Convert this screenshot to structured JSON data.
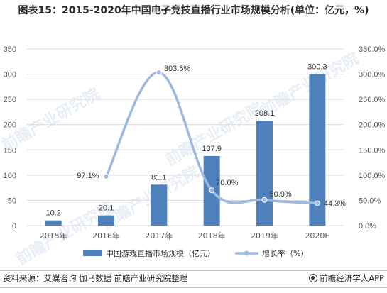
{
  "title": "图表15：2015-2020年中国电子竞技直播行业市场规模分析(单位：亿元，%)",
  "footer": {
    "source": "资料来源：艾媒咨询 伽马数据 前瞻产业研究院整理",
    "brand": "前瞻经济学人APP"
  },
  "watermark": "前瞻产业研究院",
  "colors": {
    "bar": "#4f81bd",
    "line": "#9db9e2",
    "grid": "#d9d9d9",
    "axis_text": "#595959"
  },
  "chart_data": {
    "type": "bar+line",
    "categories": [
      "2015年",
      "2016年",
      "2017年",
      "2018年",
      "2019年",
      "2020E"
    ],
    "series": [
      {
        "name": "中国游戏直播市场规模（亿元）",
        "type": "bar",
        "axis": "left",
        "values": [
          10.2,
          20.1,
          81.1,
          137.9,
          208.1,
          300.3
        ],
        "labels": [
          "10.2",
          "20.1",
          "81.1",
          "137.9",
          "208.1",
          "300.3"
        ]
      },
      {
        "name": "增长率（%）",
        "type": "line",
        "axis": "right",
        "values": [
          null,
          97.1,
          303.5,
          70.0,
          50.9,
          44.3
        ],
        "labels": [
          "",
          "97.1%",
          "303.5%",
          "70.0%",
          "50.9%",
          "44.3%"
        ]
      }
    ],
    "y_left": {
      "min": 0,
      "max": 350,
      "ticks": [
        0,
        50,
        100,
        150,
        200,
        250,
        300,
        350
      ]
    },
    "y_right": {
      "min": 0,
      "max": 350,
      "ticks": [
        "0.0%",
        "50.0%",
        "100.0%",
        "150.0%",
        "200.0%",
        "250.0%",
        "300.0%",
        "350.0%"
      ]
    },
    "legend_position": "bottom",
    "grid": true
  }
}
